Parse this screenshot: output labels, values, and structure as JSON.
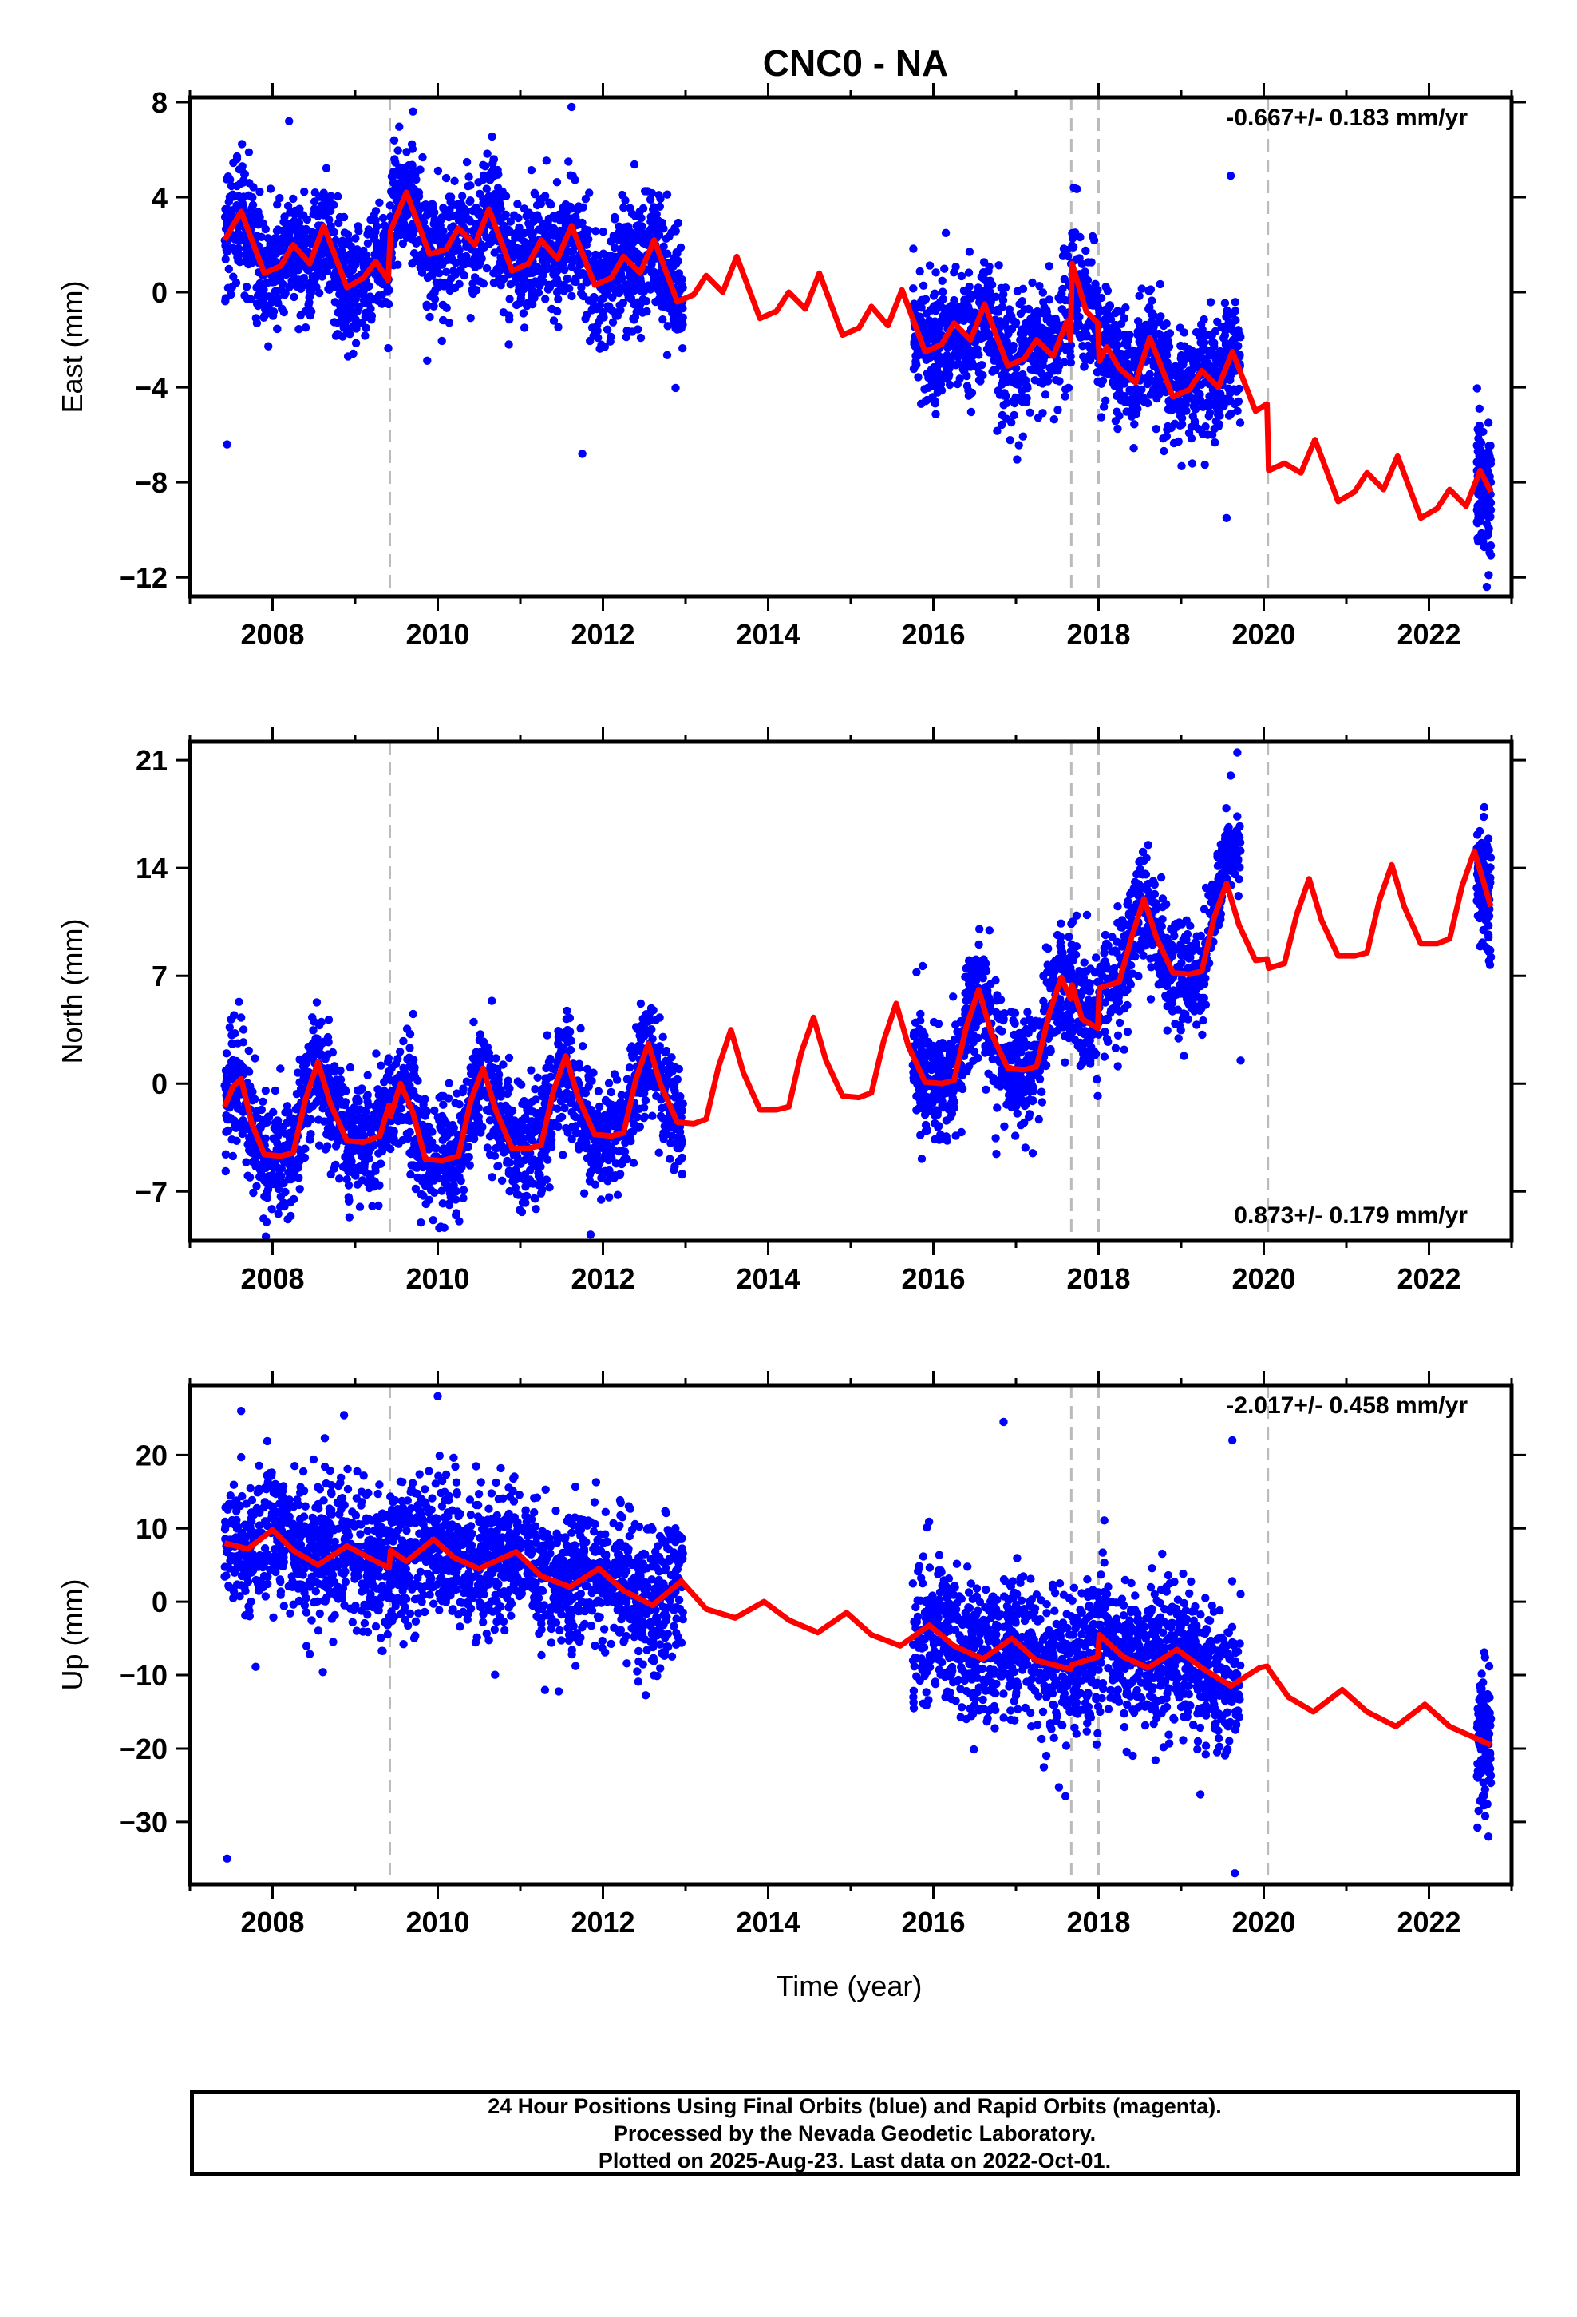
{
  "title": "CNC0 - NA",
  "xlabel": "Time (year)",
  "footer": {
    "line1": "24 Hour Positions Using Final Orbits (blue) and Rapid Orbits (magenta).",
    "line2": "Processed by the Nevada Geodetic Laboratory.",
    "line3": "Plotted on 2025-Aug-23. Last data on 2022-Oct-01."
  },
  "colors": {
    "data_points": "#0000ff",
    "model": "#ff0000",
    "steps": "#bbbbbb",
    "frame": "#000000"
  },
  "chart_data": [
    {
      "type": "scatter",
      "ylabel": "East (mm)",
      "rate": "-0.667+/- 0.183 mm/yr",
      "rate_position": "top-right",
      "xlim": [
        2007.0,
        2023.0
      ],
      "ylim": [
        -12.8,
        8.2
      ],
      "xticks": [
        2008,
        2010,
        2012,
        2014,
        2016,
        2018,
        2020,
        2022
      ],
      "xtick_labels": [
        "2008",
        "2010",
        "2012",
        "2014",
        "2016",
        "2018",
        "2020",
        "2022"
      ],
      "yticks": [
        8,
        4,
        0,
        -4,
        -8,
        -12
      ],
      "ytick_labels": [
        "8",
        "4",
        "0",
        "−4",
        "−8",
        "−12"
      ],
      "steps": [
        2009.42,
        2017.67,
        2018.0,
        2020.05
      ],
      "data_segments": [
        [
          2007.42,
          2012.97
        ],
        [
          2015.75,
          2019.72
        ],
        [
          2022.58,
          2022.75
        ]
      ],
      "model_line": [
        [
          2007.42,
          2.2
        ],
        [
          2007.62,
          3.4
        ],
        [
          2007.9,
          0.8
        ],
        [
          2008.1,
          1.1
        ],
        [
          2008.25,
          2.0
        ],
        [
          2008.45,
          1.2
        ],
        [
          2008.62,
          2.8
        ],
        [
          2008.9,
          0.2
        ],
        [
          2009.1,
          0.6
        ],
        [
          2009.25,
          1.3
        ],
        [
          2009.4,
          0.5
        ],
        [
          2009.43,
          2.6
        ],
        [
          2009.62,
          4.2
        ],
        [
          2009.9,
          1.6
        ],
        [
          2010.1,
          1.8
        ],
        [
          2010.25,
          2.7
        ],
        [
          2010.45,
          2.0
        ],
        [
          2010.62,
          3.5
        ],
        [
          2010.9,
          0.9
        ],
        [
          2011.1,
          1.2
        ],
        [
          2011.25,
          2.2
        ],
        [
          2011.45,
          1.4
        ],
        [
          2011.62,
          2.8
        ],
        [
          2011.9,
          0.3
        ],
        [
          2012.1,
          0.6
        ],
        [
          2012.25,
          1.5
        ],
        [
          2012.45,
          0.8
        ],
        [
          2012.62,
          2.2
        ],
        [
          2012.9,
          -0.4
        ],
        [
          2013.1,
          -0.1
        ],
        [
          2013.25,
          0.7
        ],
        [
          2013.45,
          0.0
        ],
        [
          2013.62,
          1.5
        ],
        [
          2013.9,
          -1.1
        ],
        [
          2014.1,
          -0.8
        ],
        [
          2014.25,
          0.0
        ],
        [
          2014.45,
          -0.7
        ],
        [
          2014.62,
          0.8
        ],
        [
          2014.9,
          -1.8
        ],
        [
          2015.1,
          -1.5
        ],
        [
          2015.25,
          -0.6
        ],
        [
          2015.45,
          -1.4
        ],
        [
          2015.62,
          0.1
        ],
        [
          2015.9,
          -2.5
        ],
        [
          2016.1,
          -2.2
        ],
        [
          2016.25,
          -1.3
        ],
        [
          2016.45,
          -2.0
        ],
        [
          2016.62,
          -0.5
        ],
        [
          2016.9,
          -3.1
        ],
        [
          2017.1,
          -2.8
        ],
        [
          2017.25,
          -2.0
        ],
        [
          2017.45,
          -2.7
        ],
        [
          2017.62,
          -1.2
        ],
        [
          2017.66,
          -2.0
        ],
        [
          2017.68,
          1.2
        ],
        [
          2017.85,
          -0.8
        ],
        [
          2017.99,
          -1.3
        ],
        [
          2018.01,
          -2.9
        ],
        [
          2018.1,
          -2.3
        ],
        [
          2018.25,
          -3.2
        ],
        [
          2018.45,
          -3.8
        ],
        [
          2018.62,
          -1.9
        ],
        [
          2018.9,
          -4.4
        ],
        [
          2019.1,
          -4.1
        ],
        [
          2019.25,
          -3.3
        ],
        [
          2019.45,
          -4.0
        ],
        [
          2019.62,
          -2.5
        ],
        [
          2019.9,
          -5.0
        ],
        [
          2020.04,
          -4.7
        ],
        [
          2020.06,
          -7.5
        ],
        [
          2020.25,
          -7.2
        ],
        [
          2020.45,
          -7.6
        ],
        [
          2020.62,
          -6.2
        ],
        [
          2020.9,
          -8.8
        ],
        [
          2021.1,
          -8.4
        ],
        [
          2021.25,
          -7.6
        ],
        [
          2021.45,
          -8.3
        ],
        [
          2021.62,
          -6.9
        ],
        [
          2021.9,
          -9.5
        ],
        [
          2022.1,
          -9.1
        ],
        [
          2022.25,
          -8.3
        ],
        [
          2022.45,
          -9.0
        ],
        [
          2022.62,
          -7.5
        ],
        [
          2022.75,
          -8.4
        ]
      ],
      "data_points": {
        "source": "24 hour positions (blue)",
        "n": 3600,
        "outliers": [
          [
            2007.45,
            -6.4
          ],
          [
            2011.75,
            -6.8
          ],
          [
            2019.55,
            -9.5
          ],
          [
            2022.7,
            -12.4
          ],
          [
            2008.2,
            7.2
          ],
          [
            2011.62,
            7.8
          ],
          [
            2017.7,
            4.4
          ],
          [
            2019.6,
            4.9
          ]
        ]
      }
    },
    {
      "type": "scatter",
      "ylabel": "North (mm)",
      "rate": "0.873+/- 0.179 mm/yr",
      "rate_position": "bottom-right",
      "xlim": [
        2007.0,
        2023.0
      ],
      "ylim": [
        -10.2,
        22.2
      ],
      "xticks": [
        2008,
        2010,
        2012,
        2014,
        2016,
        2018,
        2020,
        2022
      ],
      "xtick_labels": [
        "2008",
        "2010",
        "2012",
        "2014",
        "2016",
        "2018",
        "2020",
        "2022"
      ],
      "yticks": [
        21,
        14,
        7,
        0,
        -7
      ],
      "ytick_labels": [
        "21",
        "14",
        "7",
        "0",
        "−7"
      ],
      "steps": [
        2009.42,
        2017.67,
        2018.0,
        2020.05
      ],
      "data_segments": [
        [
          2007.42,
          2012.97
        ],
        [
          2015.75,
          2019.72
        ],
        [
          2022.58,
          2022.75
        ]
      ],
      "model_line": [
        [
          2007.42,
          -1.5
        ],
        [
          2007.52,
          -0.2
        ],
        [
          2007.62,
          0.3
        ],
        [
          2007.75,
          -2.6
        ],
        [
          2007.9,
          -4.6
        ],
        [
          2008.1,
          -4.7
        ],
        [
          2008.25,
          -4.5
        ],
        [
          2008.4,
          -1.0
        ],
        [
          2008.55,
          1.4
        ],
        [
          2008.7,
          -1.3
        ],
        [
          2008.9,
          -3.7
        ],
        [
          2009.1,
          -3.8
        ],
        [
          2009.3,
          -3.4
        ],
        [
          2009.41,
          -1.4
        ],
        [
          2009.43,
          -2.1
        ],
        [
          2009.55,
          0.0
        ],
        [
          2009.7,
          -1.9
        ],
        [
          2009.85,
          -4.9
        ],
        [
          2010.05,
          -5.0
        ],
        [
          2010.25,
          -4.7
        ],
        [
          2010.4,
          -1.1
        ],
        [
          2010.55,
          1.0
        ],
        [
          2010.7,
          -1.7
        ],
        [
          2010.9,
          -4.2
        ],
        [
          2011.1,
          -4.2
        ],
        [
          2011.25,
          -4.0
        ],
        [
          2011.4,
          -0.5
        ],
        [
          2011.55,
          1.8
        ],
        [
          2011.7,
          -0.9
        ],
        [
          2011.9,
          -3.3
        ],
        [
          2012.1,
          -3.4
        ],
        [
          2012.25,
          -3.2
        ],
        [
          2012.4,
          0.3
        ],
        [
          2012.55,
          2.6
        ],
        [
          2012.7,
          -0.1
        ],
        [
          2012.9,
          -2.5
        ],
        [
          2013.1,
          -2.6
        ],
        [
          2013.25,
          -2.3
        ],
        [
          2013.4,
          1.1
        ],
        [
          2013.55,
          3.5
        ],
        [
          2013.7,
          0.7
        ],
        [
          2013.9,
          -1.7
        ],
        [
          2014.1,
          -1.7
        ],
        [
          2014.25,
          -1.5
        ],
        [
          2014.4,
          2.0
        ],
        [
          2014.55,
          4.3
        ],
        [
          2014.7,
          1.5
        ],
        [
          2014.9,
          -0.8
        ],
        [
          2015.1,
          -0.9
        ],
        [
          2015.25,
          -0.6
        ],
        [
          2015.4,
          2.8
        ],
        [
          2015.55,
          5.2
        ],
        [
          2015.7,
          2.4
        ],
        [
          2015.9,
          0.1
        ],
        [
          2016.1,
          0.0
        ],
        [
          2016.25,
          0.2
        ],
        [
          2016.4,
          3.7
        ],
        [
          2016.55,
          6.1
        ],
        [
          2016.7,
          3.3
        ],
        [
          2016.9,
          1.0
        ],
        [
          2017.1,
          0.9
        ],
        [
          2017.25,
          1.1
        ],
        [
          2017.4,
          4.5
        ],
        [
          2017.55,
          6.9
        ],
        [
          2017.66,
          5.5
        ],
        [
          2017.68,
          6.4
        ],
        [
          2017.8,
          4.2
        ],
        [
          2017.99,
          3.6
        ],
        [
          2018.01,
          6.2
        ],
        [
          2018.25,
          6.6
        ],
        [
          2018.4,
          9.5
        ],
        [
          2018.55,
          12.0
        ],
        [
          2018.7,
          9.5
        ],
        [
          2018.9,
          7.2
        ],
        [
          2019.1,
          7.1
        ],
        [
          2019.25,
          7.3
        ],
        [
          2019.4,
          10.8
        ],
        [
          2019.55,
          13.0
        ],
        [
          2019.7,
          10.3
        ],
        [
          2019.9,
          8.0
        ],
        [
          2020.04,
          8.1
        ],
        [
          2020.06,
          7.5
        ],
        [
          2020.25,
          7.8
        ],
        [
          2020.4,
          11.0
        ],
        [
          2020.55,
          13.3
        ],
        [
          2020.7,
          10.6
        ],
        [
          2020.9,
          8.3
        ],
        [
          2021.1,
          8.3
        ],
        [
          2021.25,
          8.5
        ],
        [
          2021.4,
          11.9
        ],
        [
          2021.55,
          14.2
        ],
        [
          2021.7,
          11.5
        ],
        [
          2021.9,
          9.1
        ],
        [
          2022.1,
          9.1
        ],
        [
          2022.25,
          9.4
        ],
        [
          2022.4,
          12.8
        ],
        [
          2022.55,
          15.1
        ],
        [
          2022.75,
          11.5
        ]
      ],
      "data_points": {
        "source": "24 hour positions (blue)",
        "n": 3600,
        "outliers": [
          [
            2011.85,
            -9.8
          ],
          [
            2019.72,
            1.5
          ],
          [
            2008.48,
            4.3
          ],
          [
            2019.68,
            21.5
          ],
          [
            2019.6,
            20.0
          ]
        ]
      }
    },
    {
      "type": "scatter",
      "ylabel": "Up (mm)",
      "rate": "-2.017+/- 0.458 mm/yr",
      "rate_position": "top-right",
      "xlim": [
        2007.0,
        2023.0
      ],
      "ylim": [
        -38.5,
        29.5
      ],
      "xticks": [
        2008,
        2010,
        2012,
        2014,
        2016,
        2018,
        2020,
        2022
      ],
      "xtick_labels": [
        "2008",
        "2010",
        "2012",
        "2014",
        "2016",
        "2018",
        "2020",
        "2022"
      ],
      "yticks": [
        20,
        10,
        0,
        -10,
        -20,
        -30
      ],
      "ytick_labels": [
        "20",
        "10",
        "0",
        "−10",
        "−20",
        "−30"
      ],
      "steps": [
        2009.42,
        2017.67,
        2018.0,
        2020.05
      ],
      "data_segments": [
        [
          2007.42,
          2012.97
        ],
        [
          2015.75,
          2019.72
        ],
        [
          2022.58,
          2022.75
        ]
      ],
      "model_line": [
        [
          2007.42,
          8.0
        ],
        [
          2007.7,
          7.2
        ],
        [
          2008.0,
          9.8
        ],
        [
          2008.25,
          7.0
        ],
        [
          2008.55,
          5.0
        ],
        [
          2008.9,
          7.6
        ],
        [
          2009.2,
          5.8
        ],
        [
          2009.41,
          4.6
        ],
        [
          2009.43,
          7.0
        ],
        [
          2009.62,
          5.5
        ],
        [
          2009.95,
          8.5
        ],
        [
          2010.2,
          6.0
        ],
        [
          2010.5,
          4.5
        ],
        [
          2010.95,
          6.8
        ],
        [
          2011.25,
          3.5
        ],
        [
          2011.6,
          2.0
        ],
        [
          2011.95,
          4.5
        ],
        [
          2012.25,
          1.5
        ],
        [
          2012.6,
          -0.5
        ],
        [
          2012.95,
          2.8
        ],
        [
          2013.25,
          -1.0
        ],
        [
          2013.6,
          -2.2
        ],
        [
          2013.95,
          0.0
        ],
        [
          2014.25,
          -2.5
        ],
        [
          2014.6,
          -4.2
        ],
        [
          2014.95,
          -1.5
        ],
        [
          2015.25,
          -4.5
        ],
        [
          2015.6,
          -6.0
        ],
        [
          2015.95,
          -3.2
        ],
        [
          2016.25,
          -6.0
        ],
        [
          2016.6,
          -7.8
        ],
        [
          2016.95,
          -5.0
        ],
        [
          2017.25,
          -8.0
        ],
        [
          2017.66,
          -9.2
        ],
        [
          2017.68,
          -8.6
        ],
        [
          2017.99,
          -7.5
        ],
        [
          2018.01,
          -4.5
        ],
        [
          2018.3,
          -7.5
        ],
        [
          2018.6,
          -9.0
        ],
        [
          2018.95,
          -6.5
        ],
        [
          2019.25,
          -9.0
        ],
        [
          2019.6,
          -11.5
        ],
        [
          2019.95,
          -9.0
        ],
        [
          2020.04,
          -8.8
        ],
        [
          2020.06,
          -9.2
        ],
        [
          2020.3,
          -13.0
        ],
        [
          2020.6,
          -15.0
        ],
        [
          2020.95,
          -12.0
        ],
        [
          2021.25,
          -15.0
        ],
        [
          2021.6,
          -17.0
        ],
        [
          2021.95,
          -14.0
        ],
        [
          2022.25,
          -17.0
        ],
        [
          2022.75,
          -19.5
        ]
      ],
      "data_points": {
        "source": "24 hour positions (blue)",
        "n": 3600,
        "outliers": [
          [
            2007.45,
            -35.0
          ],
          [
            2019.65,
            -37.0
          ],
          [
            2010.0,
            28.0
          ],
          [
            2007.62,
            26.0
          ],
          [
            2016.85,
            24.5
          ],
          [
            2019.62,
            22.0
          ],
          [
            2022.72,
            -32.0
          ],
          [
            2017.6,
            -26.5
          ]
        ]
      }
    }
  ]
}
